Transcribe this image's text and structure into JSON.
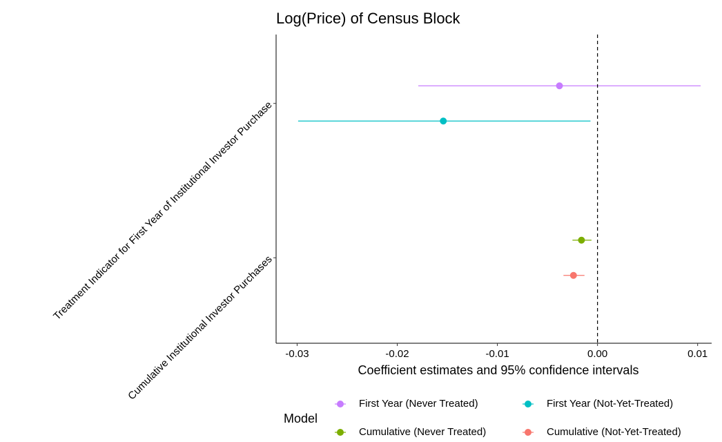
{
  "chart_data": {
    "type": "coefficient",
    "title": "Log(Price) of Census Block",
    "xlabel": "Coefficient estimates and 95% confidence intervals",
    "categories": [
      "Treatment Indicator for First Year of Institutional Investor Purchase",
      "Cumulative Institutional Investor Purchases"
    ],
    "series": [
      {
        "name": "First Year (Never Treated)",
        "color": "#C77CFF",
        "values": [
          -0.0038,
          null
        ],
        "lower": [
          -0.0179,
          null
        ],
        "upper": [
          0.0103,
          null
        ]
      },
      {
        "name": "First Year (Not-Yet-Treated)",
        "color": "#00BFC4",
        "values": [
          -0.0154,
          null
        ],
        "lower": [
          -0.0299,
          null
        ],
        "upper": [
          -0.0007,
          null
        ]
      },
      {
        "name": "Cumulative (Never Treated)",
        "color": "#7CAE00",
        "values": [
          null,
          -0.0016
        ],
        "lower": [
          null,
          -0.0025
        ],
        "upper": [
          null,
          -0.0006
        ]
      },
      {
        "name": "Cumulative (Not-Yet-Treated)",
        "color": "#F8766D",
        "values": [
          null,
          -0.0024
        ],
        "lower": [
          null,
          -0.0034
        ],
        "upper": [
          null,
          -0.0013
        ]
      }
    ],
    "xlim": [
      -0.0321,
      0.0114
    ],
    "xticks": [
      -0.03,
      -0.02,
      -0.01,
      {
        "value": 0,
        "label": "0.00"
      },
      0.01
    ],
    "reference_line": 0,
    "legend_title": "Model",
    "legend_position": "bottom"
  }
}
